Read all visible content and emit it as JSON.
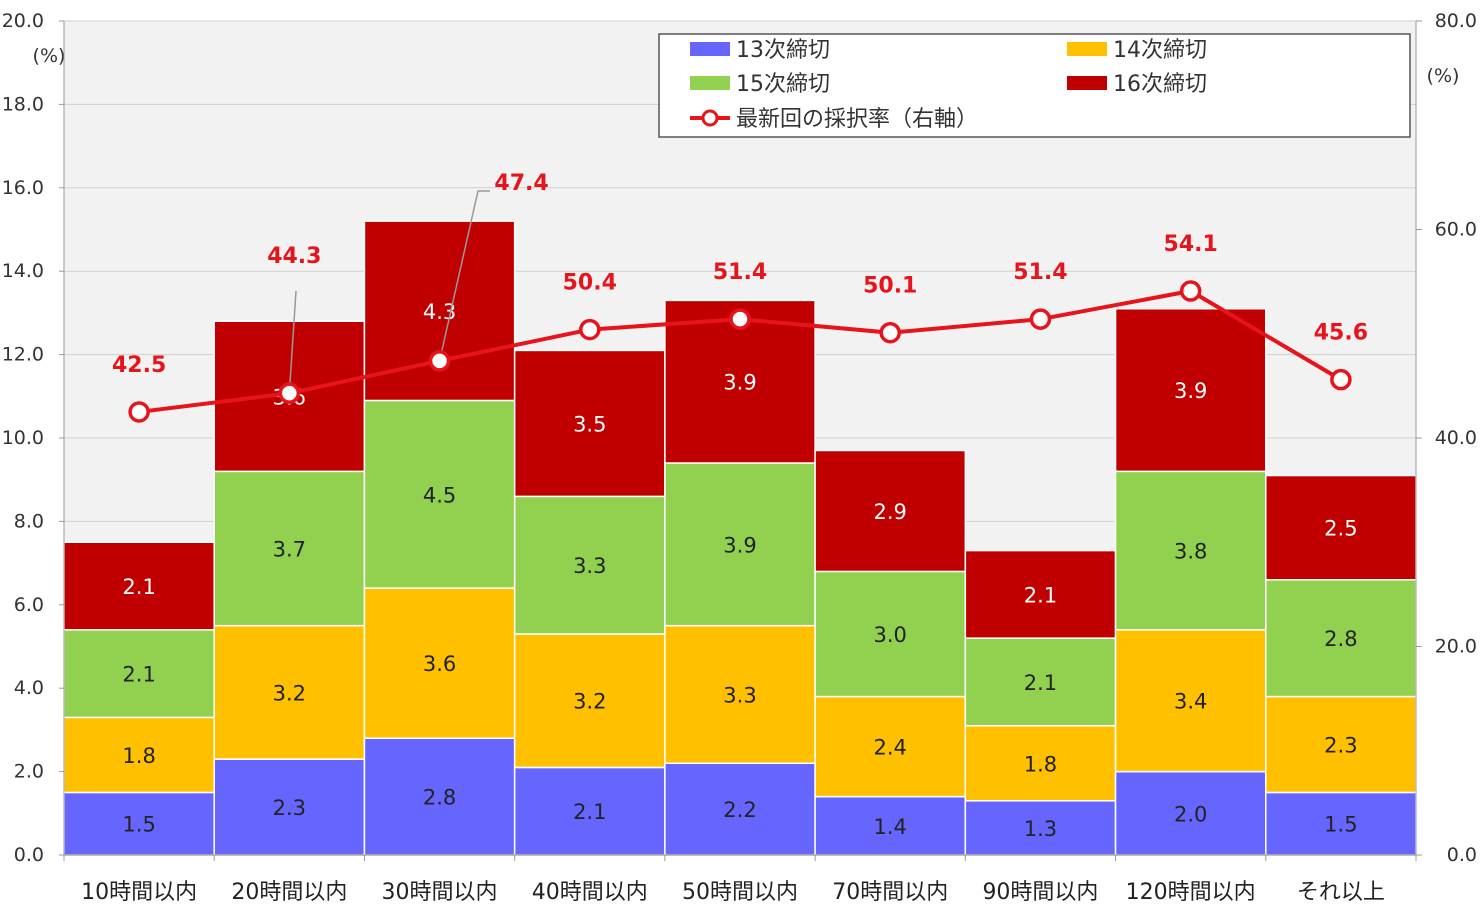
{
  "chart_data": {
    "type": "bar",
    "stacked": true,
    "categories": [
      "10時間以内",
      "20時間以内",
      "30時間以内",
      "40時間以内",
      "50時間以内",
      "70時間以内",
      "90時間以内",
      "120時間以内",
      "それ以上"
    ],
    "series": [
      {
        "name": "13次締切",
        "color": "#6666ff",
        "label_color": "#222222",
        "values": [
          1.5,
          2.3,
          2.8,
          2.1,
          2.2,
          1.4,
          1.3,
          2.0,
          1.5
        ]
      },
      {
        "name": "14次締切",
        "color": "#ffc000",
        "label_color": "#222222",
        "values": [
          1.8,
          3.2,
          3.6,
          3.2,
          3.3,
          2.4,
          1.8,
          3.4,
          2.3
        ]
      },
      {
        "name": "15次締切",
        "color": "#92d050",
        "label_color": "#222222",
        "values": [
          2.1,
          3.7,
          4.5,
          3.3,
          3.9,
          3.0,
          2.1,
          3.8,
          2.8
        ]
      },
      {
        "name": "16次締切",
        "color": "#c00000",
        "label_color": "#ffffff",
        "values": [
          2.1,
          3.6,
          4.3,
          3.5,
          3.9,
          2.9,
          2.1,
          3.9,
          2.5
        ]
      }
    ],
    "line": {
      "name": "最新回の採択率（右軸）",
      "axis": "right",
      "color": "#e8141b",
      "values": [
        42.5,
        44.3,
        47.4,
        50.4,
        51.4,
        50.1,
        51.4,
        54.1,
        45.6
      ]
    },
    "y_left": {
      "range": [
        0,
        20
      ],
      "ticks": [
        "0.0",
        "2.0",
        "4.0",
        "6.0",
        "8.0",
        "10.0",
        "12.0",
        "14.0",
        "16.0",
        "18.0",
        "20.0"
      ],
      "unit": "(%)"
    },
    "y_right": {
      "range": [
        0,
        80
      ],
      "ticks": [
        "0.0",
        "20.0",
        "40.0",
        "60.0",
        "80.0"
      ],
      "unit": "(%)"
    },
    "legend_position": "top-right",
    "grid": true
  }
}
